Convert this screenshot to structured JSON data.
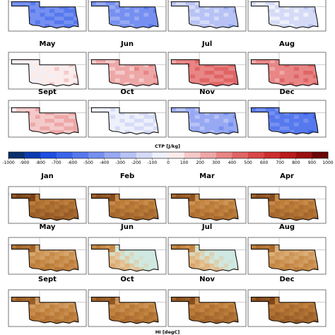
{
  "chart_data": [
    {
      "type": "heatmap",
      "variable": "CTP",
      "colorbar_label": "CTP [J/kg]",
      "colorbar_ticks": [
        -1000,
        -900,
        -800,
        -700,
        -600,
        -500,
        -400,
        -300,
        -200,
        -100,
        0,
        100,
        200,
        300,
        400,
        500,
        600,
        700,
        800,
        900,
        1000
      ],
      "colorbar_range": [
        -1000,
        1000
      ],
      "colors": [
        "#08306b",
        "#0c3bb0",
        "#1f4fe0",
        "#3a64ea",
        "#5679ee",
        "#7690f1",
        "#97a9f3",
        "#b7c2f5",
        "#d5dbf7",
        "#eef0fb",
        "#fbecec",
        "#f4c9c9",
        "#eea7a7",
        "#e88585",
        "#e06565",
        "#d84747",
        "#cc2e2e",
        "#b91c1c",
        "#9b1111",
        "#6b0606"
      ],
      "panels": [
        {
          "month": "",
          "visible_title": false,
          "mean": -480
        },
        {
          "month": "",
          "visible_title": false,
          "mean": -420
        },
        {
          "month": "",
          "visible_title": false,
          "mean": -220
        },
        {
          "month": "",
          "visible_title": false,
          "mean": -120
        },
        {
          "month": "May",
          "mean": 40
        },
        {
          "month": "Jun",
          "mean": 230
        },
        {
          "month": "Jul",
          "mean": 380
        },
        {
          "month": "Aug",
          "mean": 350
        },
        {
          "month": "Sept",
          "mean": 180
        },
        {
          "month": "Oct",
          "mean": -80
        },
        {
          "month": "Nov",
          "mean": -330
        },
        {
          "month": "Dec",
          "mean": -520
        }
      ]
    },
    {
      "type": "heatmap",
      "variable": "HI",
      "colorbar_label": "HI [degC]",
      "panels": [
        {
          "month": "Jan",
          "level": 0.62
        },
        {
          "month": "Feb",
          "level": 0.55
        },
        {
          "month": "Mar",
          "level": 0.5
        },
        {
          "month": "Apr",
          "level": 0.55
        },
        {
          "month": "May",
          "level": 0.4
        },
        {
          "month": "Jun",
          "level": 0.3
        },
        {
          "month": "Jul",
          "level": 0.32
        },
        {
          "month": "Aug",
          "level": 0.35
        },
        {
          "month": "Sept",
          "level": 0.45
        },
        {
          "month": "Oct",
          "level": 0.5
        },
        {
          "month": "Nov",
          "level": 0.55
        },
        {
          "month": "Dec",
          "level": 0.6
        }
      ]
    }
  ]
}
